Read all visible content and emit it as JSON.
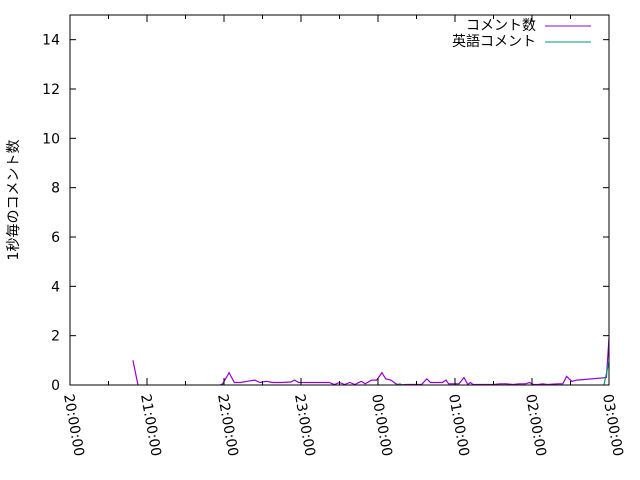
{
  "chart_data": {
    "type": "line",
    "title": "",
    "xlabel": "",
    "ylabel": "1秒毎のコメント数",
    "xlim": [
      "20:00:00",
      "03:00:00"
    ],
    "ylim": [
      0,
      15
    ],
    "x_ticks": [
      "20:00:00",
      "21:00:00",
      "22:00:00",
      "23:00:00",
      "00:00:00",
      "01:00:00",
      "02:00:00",
      "03:00:00"
    ],
    "y_ticks": [
      "0",
      "2",
      "4",
      "6",
      "8",
      "10",
      "12",
      "14"
    ],
    "grid": false,
    "legend_position": "top-right",
    "series": [
      {
        "name": "コメント数",
        "color": "#9400d3",
        "segments": [
          [
            [
              "20:49",
              1.0
            ],
            [
              "20:53",
              0
            ]
          ],
          [
            [
              "21:57",
              0
            ],
            [
              "21:59",
              0.05
            ],
            [
              "22:04",
              0.5
            ],
            [
              "22:08",
              0.1
            ],
            [
              "22:13",
              0.1
            ],
            [
              "22:18",
              0.15
            ],
            [
              "22:24",
              0.2
            ],
            [
              "22:28",
              0.1
            ],
            [
              "22:33",
              0.15
            ],
            [
              "22:38",
              0.1
            ],
            [
              "22:45",
              0.1
            ],
            [
              "22:52",
              0.12
            ],
            [
              "22:55",
              0.2
            ],
            [
              "22:58",
              0.1
            ],
            [
              "23:10",
              0.1
            ],
            [
              "23:22",
              0.1
            ],
            [
              "23:26",
              0.02
            ],
            [
              "23:30",
              0.1
            ],
            [
              "23:34",
              0.02
            ],
            [
              "23:38",
              0.1
            ],
            [
              "23:42",
              0.02
            ],
            [
              "23:47",
              0.15
            ],
            [
              "23:50",
              0.05
            ],
            [
              "23:55",
              0.2
            ],
            [
              "23:59",
              0.2
            ],
            [
              "00:03",
              0.5
            ],
            [
              "00:06",
              0.25
            ],
            [
              "00:10",
              0.2
            ],
            [
              "00:14",
              0.05
            ],
            [
              "00:17",
              0.0
            ],
            [
              "00:22",
              0.02
            ],
            [
              "00:34",
              0.02
            ],
            [
              "00:38",
              0.25
            ],
            [
              "00:41",
              0.1
            ],
            [
              "00:50",
              0.1
            ],
            [
              "00:53",
              0.2
            ],
            [
              "00:55",
              0.05
            ],
            [
              "01:00",
              0.05
            ],
            [
              "01:03",
              0.05
            ],
            [
              "01:07",
              0.3
            ],
            [
              "01:10",
              0.02
            ],
            [
              "01:12",
              0.1
            ],
            [
              "01:14",
              0.02
            ],
            [
              "01:30",
              0.02
            ],
            [
              "01:35",
              0.05
            ],
            [
              "01:40",
              0.05
            ],
            [
              "01:45",
              0.02
            ],
            [
              "01:50",
              0.05
            ],
            [
              "01:55",
              0.05
            ],
            [
              "01:58",
              0.1
            ],
            [
              "02:01",
              0.02
            ],
            [
              "02:05",
              0.02
            ],
            [
              "02:08",
              0.05
            ],
            [
              "02:12",
              0.02
            ],
            [
              "02:20",
              0.05
            ],
            [
              "02:24",
              0.05
            ],
            [
              "02:27",
              0.35
            ],
            [
              "02:31",
              0.15
            ],
            [
              "02:35",
              0.2
            ],
            [
              "02:58",
              0.3
            ],
            [
              "03:00",
              1.9
            ]
          ]
        ]
      },
      {
        "name": "英語コメント",
        "color": "#009e73",
        "segments": [
          [
            [
              "00:15",
              0
            ],
            [
              "00:17",
              0.05
            ],
            [
              "00:19",
              0
            ]
          ],
          [
            [
              "02:56",
              0
            ],
            [
              "03:00",
              0.95
            ]
          ]
        ]
      }
    ]
  }
}
